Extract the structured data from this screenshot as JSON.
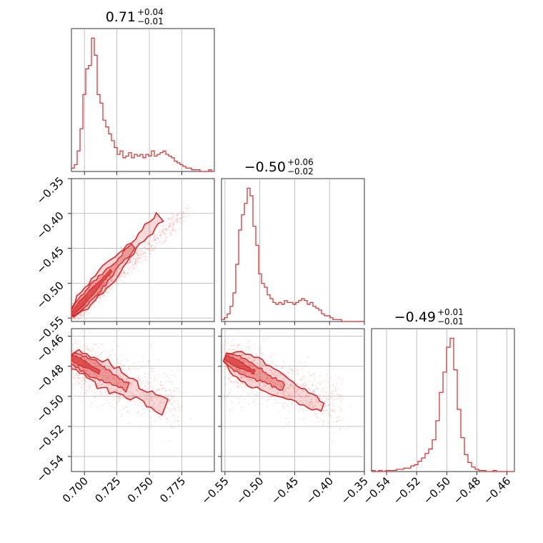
{
  "chart_data": {
    "type": "corner",
    "grid": true,
    "color": "#d62728",
    "panel_titles": [
      {
        "main": "0.71",
        "sup": "+0.04",
        "sub": "−0.01"
      },
      {
        "main": "−0.50",
        "sup": "+0.06",
        "sub": "−0.02"
      },
      {
        "main": "−0.49",
        "sup": "+0.01",
        "sub": "−0.01"
      }
    ],
    "parameters": [
      {
        "range": [
          0.69,
          0.8
        ],
        "ticks": [
          0.7,
          0.725,
          0.75,
          0.775
        ],
        "tick_labels": [
          "0.700",
          "0.725",
          "0.750",
          "0.775"
        ]
      },
      {
        "range": [
          -0.555,
          -0.35
        ],
        "ticks": [
          -0.55,
          -0.5,
          -0.45,
          -0.4,
          -0.35
        ],
        "tick_labels": [
          "−0.55",
          "−0.50",
          "−0.45",
          "−0.40",
          "−0.35"
        ]
      },
      {
        "range": [
          -0.55,
          -0.455
        ],
        "ticks": [
          -0.54,
          -0.52,
          -0.5,
          -0.48,
          -0.46
        ],
        "tick_labels": [
          "−0.54",
          "−0.52",
          "−0.50",
          "−0.48",
          "−0.46"
        ]
      }
    ],
    "histograms": [
      {
        "bins": [
          0.69,
          0.8
        ],
        "counts": [
          2,
          4,
          12,
          25,
          45,
          60,
          62,
          78,
          68,
          45,
          40,
          30,
          26,
          22,
          18,
          14,
          10,
          12,
          8,
          9,
          11,
          8,
          10,
          9,
          10,
          8,
          10,
          9,
          12,
          9,
          10,
          11,
          12,
          10,
          9,
          8,
          6,
          5,
          4,
          3,
          2,
          2,
          1,
          1,
          1,
          0,
          0,
          0,
          1,
          0
        ]
      },
      {
        "bins": [
          -0.555,
          -0.35
        ],
        "counts": [
          1,
          2,
          4,
          8,
          15,
          30,
          48,
          56,
          62,
          70,
          66,
          50,
          40,
          25,
          20,
          18,
          14,
          12,
          10,
          9,
          10,
          9,
          11,
          10,
          10,
          9,
          10,
          11,
          12,
          11,
          9,
          10,
          8,
          7,
          6,
          4,
          3,
          3,
          2,
          1,
          1,
          1,
          0,
          0,
          0,
          0,
          0,
          0,
          0,
          0
        ]
      },
      {
        "bins": [
          -0.55,
          -0.455
        ],
        "counts": [
          1,
          0,
          1,
          0,
          1,
          1,
          1,
          2,
          2,
          3,
          3,
          5,
          6,
          9,
          12,
          16,
          20,
          28,
          45,
          70,
          88,
          110,
          118,
          90,
          55,
          30,
          15,
          8,
          4,
          2,
          1,
          1,
          0,
          0,
          1,
          0,
          0,
          0,
          0,
          0
        ]
      }
    ],
    "contours": [
      {
        "pair": [
          1,
          0
        ],
        "orientation": "positive",
        "center": [
          0.735,
          -0.46
        ],
        "slope": 1.1
      },
      {
        "pair": [
          2,
          0
        ],
        "orientation": "negative",
        "center": [
          0.735,
          -0.492
        ]
      },
      {
        "pair": [
          2,
          1
        ],
        "orientation": "negative",
        "center": [
          -0.47,
          -0.493
        ]
      }
    ]
  }
}
